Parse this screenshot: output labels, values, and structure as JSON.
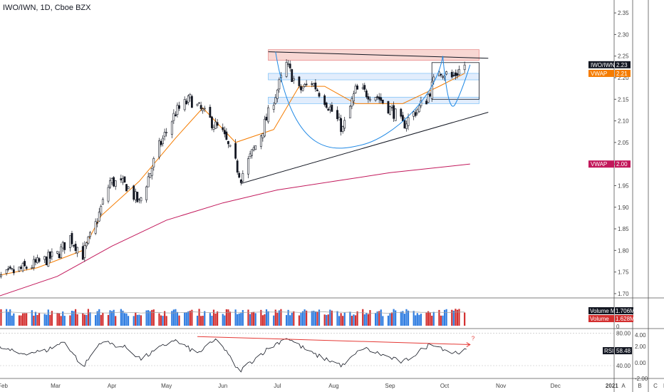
{
  "header": {
    "title": "IWO/IWN, 1D, Cboe BZX"
  },
  "tags": {
    "price_label": "IWO/IWN",
    "price_value": "2.23",
    "vwap_short_label": "VWAP",
    "vwap_short_value": "2.21",
    "vwap_long_label": "VWAP",
    "vwap_long_value": "2.00",
    "vol_ma_label": "Volume MA",
    "vol_ma_value": "1.706M",
    "volume_label": "Volume",
    "volume_value": "1.628M",
    "rsi_label": "RSI",
    "rsi_value": "58.48"
  },
  "annotations": {
    "question": "?"
  },
  "footer_buttons": [
    "A",
    "B",
    "C"
  ],
  "colors": {
    "up": "#ffffff",
    "down": "#131722",
    "vol_up": "#2f7de1",
    "vol_down": "#d32f2f",
    "vwap_short": "#f57c00",
    "vwap_long": "#c2185b",
    "curve": "#1e88e5",
    "rsi_trend": "#e53935",
    "zone_red": "#f5c6c0",
    "zone_blue": "#d6e6fb"
  },
  "chart_data": {
    "type": "candlestick",
    "title": "IWO/IWN, 1D, Cboe BZX",
    "x_axis_labels": [
      "Feb",
      "Mar",
      "Apr",
      "May",
      "Jun",
      "Jul",
      "Aug",
      "Sep",
      "Oct",
      "Nov",
      "Dec",
      "2021",
      "Feb"
    ],
    "price_axis": {
      "ticks": [
        "2.35",
        "2.30",
        "2.25",
        "2.20",
        "2.15",
        "2.10",
        "2.05",
        "2.00",
        "1.95",
        "1.90",
        "1.85",
        "1.80",
        "1.75",
        "1.70"
      ],
      "range": [
        1.69,
        2.37
      ]
    },
    "rsi_axis": {
      "ticks": [
        "80.00",
        "40.00"
      ],
      "range": [
        25,
        85
      ]
    },
    "secondary_axis": {
      "ticks": [
        "4.00",
        "2.00",
        "0.00",
        "-2.00"
      ]
    },
    "volume_axis": {
      "ticks": [
        "0"
      ]
    },
    "close_path": [
      [
        "2020-01-27",
        1.73
      ],
      [
        "2020-02-07",
        1.75
      ],
      [
        "2020-02-20",
        1.77
      ],
      [
        "2020-03-02",
        1.79
      ],
      [
        "2020-03-09",
        1.83
      ],
      [
        "2020-03-16",
        1.79
      ],
      [
        "2020-03-23",
        1.86
      ],
      [
        "2020-03-31",
        1.96
      ],
      [
        "2020-04-09",
        1.95
      ],
      [
        "2020-04-16",
        1.91
      ],
      [
        "2020-04-27",
        2.04
      ],
      [
        "2020-05-06",
        2.12
      ],
      [
        "2020-05-14",
        2.15
      ],
      [
        "2020-05-21",
        2.12
      ],
      [
        "2020-06-01",
        2.07
      ],
      [
        "2020-06-08",
        2.0
      ],
      [
        "2020-06-11",
        1.97
      ],
      [
        "2020-06-22",
        2.07
      ],
      [
        "2020-06-29",
        2.15
      ],
      [
        "2020-07-06",
        2.23
      ],
      [
        "2020-07-13",
        2.17
      ],
      [
        "2020-07-20",
        2.19
      ],
      [
        "2020-07-27",
        2.15
      ],
      [
        "2020-08-06",
        2.08
      ],
      [
        "2020-08-13",
        2.17
      ],
      [
        "2020-08-24",
        2.16
      ],
      [
        "2020-09-03",
        2.12
      ],
      [
        "2020-09-08",
        2.09
      ],
      [
        "2020-09-21",
        2.15
      ],
      [
        "2020-09-28",
        2.22
      ],
      [
        "2020-10-05",
        2.2
      ],
      [
        "2020-10-12",
        2.23
      ]
    ],
    "vwap_short_path": [
      [
        "2020-01-27",
        1.74
      ],
      [
        "2020-02-20",
        1.76
      ],
      [
        "2020-03-16",
        1.8
      ],
      [
        "2020-03-26",
        1.88
      ],
      [
        "2020-04-16",
        1.96
      ],
      [
        "2020-05-06",
        2.06
      ],
      [
        "2020-05-21",
        2.13
      ],
      [
        "2020-06-08",
        2.05
      ],
      [
        "2020-06-29",
        2.08
      ],
      [
        "2020-07-13",
        2.18
      ],
      [
        "2020-07-27",
        2.18
      ],
      [
        "2020-08-13",
        2.14
      ],
      [
        "2020-09-08",
        2.14
      ],
      [
        "2020-09-28",
        2.18
      ],
      [
        "2020-10-12",
        2.21
      ]
    ],
    "vwap_long_path": [
      [
        "2020-01-27",
        1.69
      ],
      [
        "2020-03-02",
        1.74
      ],
      [
        "2020-04-01",
        1.81
      ],
      [
        "2020-05-01",
        1.87
      ],
      [
        "2020-06-01",
        1.91
      ],
      [
        "2020-07-01",
        1.94
      ],
      [
        "2020-08-01",
        1.96
      ],
      [
        "2020-09-01",
        1.98
      ],
      [
        "2020-10-15",
        2.0
      ]
    ],
    "resistance_line": [
      [
        "2020-06-26",
        2.26
      ],
      [
        "2020-10-25",
        2.245
      ]
    ],
    "support_line": [
      [
        "2020-06-11",
        1.955
      ],
      [
        "2020-10-25",
        2.12
      ]
    ],
    "cup_curve": [
      [
        "2020-06-30",
        2.26
      ],
      [
        "2020-08-17",
        2.045
      ],
      [
        "2020-09-30",
        2.25
      ]
    ],
    "handle_curve": [
      [
        "2020-09-30",
        2.25
      ],
      [
        "2020-10-07",
        2.14
      ],
      [
        "2020-10-15",
        2.23
      ]
    ],
    "zones": [
      {
        "kind": "red",
        "from": "2020-06-26",
        "to": "2020-10-20",
        "low": 2.24,
        "high": 2.265
      },
      {
        "kind": "blue",
        "from": "2020-06-26",
        "to": "2020-10-20",
        "low": 2.195,
        "high": 2.21
      },
      {
        "kind": "blue",
        "from": "2020-06-26",
        "to": "2020-10-20",
        "low": 2.14,
        "high": 2.155
      }
    ],
    "box": {
      "from": "2020-09-24",
      "to": "2020-10-20",
      "low": 2.15,
      "high": 2.235
    },
    "volume_bars": {
      "down_ratio": 0.45,
      "level_m": [
        1.2,
        2.1
      ],
      "last_m": 1.628,
      "ma_m": 1.706
    },
    "rsi_path": [
      [
        "2020-01-27",
        65
      ],
      [
        "2020-02-10",
        55
      ],
      [
        "2020-02-24",
        58
      ],
      [
        "2020-03-06",
        70
      ],
      [
        "2020-03-16",
        38
      ],
      [
        "2020-03-26",
        70
      ],
      [
        "2020-04-09",
        62
      ],
      [
        "2020-04-17",
        48
      ],
      [
        "2020-05-05",
        72
      ],
      [
        "2020-05-18",
        55
      ],
      [
        "2020-05-29",
        73
      ],
      [
        "2020-06-10",
        33
      ],
      [
        "2020-06-24",
        58
      ],
      [
        "2020-07-06",
        75
      ],
      [
        "2020-07-20",
        55
      ],
      [
        "2020-08-06",
        40
      ],
      [
        "2020-08-17",
        62
      ],
      [
        "2020-09-08",
        44
      ],
      [
        "2020-09-24",
        68
      ],
      [
        "2020-10-05",
        56
      ],
      [
        "2020-10-13",
        58.48
      ]
    ],
    "rsi_trendline": [
      [
        "2020-05-18",
        76
      ],
      [
        "2020-10-15",
        66
      ]
    ]
  }
}
